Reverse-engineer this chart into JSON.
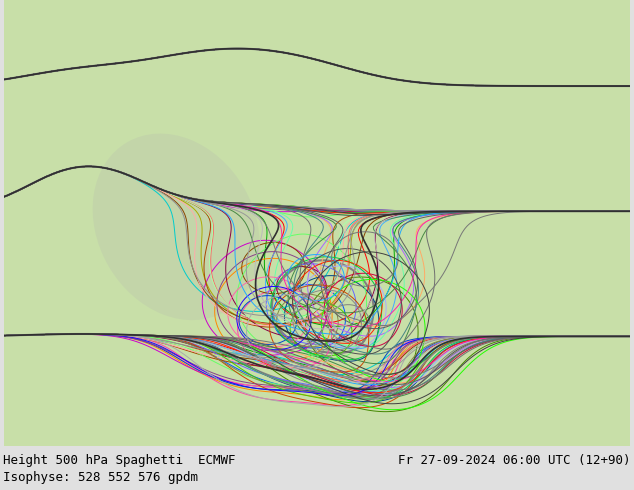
{
  "title_left": "Height 500 hPa Spaghetti  ECMWF",
  "title_right": "Fr 27-09-2024 06:00 UTC (12+90)",
  "subtitle": "Isophyse: 528 552 576 gpdm",
  "background_color": "#e0e0e0",
  "map_land_color": "#c8dfa8",
  "map_ocean_color": "#c8dde8",
  "text_color": "#000000",
  "figsize": [
    6.34,
    4.9
  ],
  "dpi": 100,
  "font_size": 9,
  "isohypse_values": [
    528,
    552,
    576
  ],
  "extent_lon": [
    -135,
    -55
  ],
  "extent_lat": [
    15,
    72
  ]
}
